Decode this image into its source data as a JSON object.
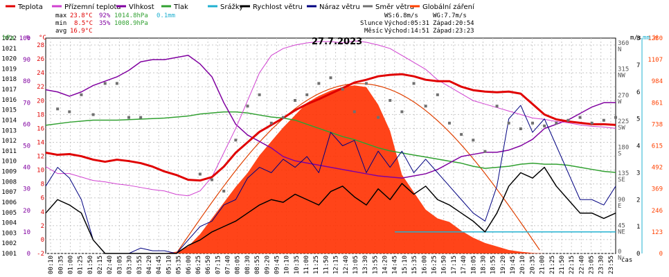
{
  "legend": [
    {
      "label": "Teplota",
      "color": "#e00000"
    },
    {
      "label": "Přízemní teplota",
      "color": "#d040d0"
    },
    {
      "label": "Vlhkost",
      "color": "#8000a0"
    },
    {
      "label": "Tlak",
      "color": "#30a030"
    },
    {
      "label": "Srážky",
      "color": "#20b0d0"
    },
    {
      "label": "Rychlost větru",
      "color": "#000000"
    },
    {
      "label": "Náraz větru",
      "color": "#000080"
    },
    {
      "label": "Směr větru",
      "color": "#707070"
    },
    {
      "label": "Globální záření",
      "color": "#ff4000"
    }
  ],
  "stats": {
    "max_label": "max",
    "max_temp": "23.8°C",
    "max_hum": "92%",
    "max_press": "1014.8hPa",
    "max_rain": "0.1mm",
    "min_label": "min",
    "min_temp": "8.5°C",
    "min_hum": "35%",
    "min_press": "1008.9hPa",
    "avg_label": "avg",
    "avg_temp": "16.9°C"
  },
  "sun": {
    "ws": "WS:6.8m/s",
    "wg": "WG:7.7m/s",
    "slunce_label": "Slunce",
    "slunce_rise": "Východ:05:31",
    "slunce_set": "Západ:20:54",
    "mesic_label": "Měsíc",
    "mesic_rise": "Východ:14:51",
    "mesic_set": "Západ:23:23"
  },
  "chart_data": {
    "type": "line",
    "title": "27.7.2023",
    "xlabel": "čas",
    "x_ticks": [
      "00:10",
      "00:35",
      "01:00",
      "01:25",
      "01:50",
      "02:15",
      "02:40",
      "03:05",
      "03:30",
      "03:55",
      "04:20",
      "04:45",
      "05:10",
      "05:35",
      "06:00",
      "06:25",
      "06:50",
      "07:15",
      "07:40",
      "08:05",
      "08:30",
      "08:55",
      "09:20",
      "09:45",
      "10:10",
      "10:35",
      "11:00",
      "11:25",
      "11:50",
      "12:15",
      "12:40",
      "13:05",
      "13:30",
      "13:55",
      "14:20",
      "14:45",
      "15:10",
      "15:35",
      "16:00",
      "16:25",
      "16:50",
      "17:15",
      "17:40",
      "18:05",
      "18:30",
      "18:55",
      "19:20",
      "19:45",
      "20:10",
      "20:35",
      "21:00",
      "21:25",
      "21:50",
      "22:15",
      "22:40",
      "23:05",
      "23:30",
      "23:55"
    ],
    "x_range_hours": [
      0,
      24
    ],
    "axes": {
      "pressure": {
        "label": "hPa",
        "range": [
          1001,
          1022
        ],
        "color": "#30a030"
      },
      "humidity": {
        "label": "%",
        "range": [
          0,
          100
        ],
        "color": "#8000a0"
      },
      "temperature": {
        "label": "°C",
        "range": [
          -2,
          29
        ],
        "color": "#e00000"
      },
      "wind_speed": {
        "label": "m/s",
        "range": [
          0,
          8
        ],
        "color": "#000000"
      },
      "rain": {
        "label": "mm",
        "range": [
          0,
          1
        ],
        "color": "#20b0d0"
      },
      "radiation": {
        "label": "W",
        "range": [
          0,
          1230
        ],
        "color": "#ff4000"
      },
      "direction": {
        "ticks": [
          "360 N",
          "315 NW",
          "270 W",
          "225 SW",
          "180 S",
          "135 SE",
          "90 E",
          "45 NE",
          "0 N"
        ]
      }
    },
    "series": [
      {
        "name": "Teplota",
        "unit": "°C",
        "x": [
          0,
          0.5,
          1,
          1.5,
          2,
          2.5,
          3,
          3.5,
          4,
          4.5,
          5,
          5.5,
          6,
          6.5,
          7,
          7.5,
          8,
          8.5,
          9,
          9.5,
          10,
          10.5,
          11,
          11.5,
          12,
          12.5,
          13,
          13.5,
          14,
          14.5,
          15,
          15.5,
          16,
          16.5,
          17,
          17.5,
          18,
          18.5,
          19,
          19.5,
          20,
          20.5,
          21,
          21.5,
          22,
          22.5,
          23,
          23.5,
          24
        ],
        "values": [
          12.5,
          12.2,
          12.3,
          12.0,
          11.5,
          11.2,
          11.5,
          11.3,
          11.0,
          10.5,
          9.8,
          9.3,
          8.6,
          8.5,
          9.0,
          10.5,
          12.5,
          14.0,
          15.5,
          16.5,
          17.5,
          18.6,
          19.5,
          20.2,
          21.0,
          21.8,
          22.6,
          23.0,
          23.5,
          23.7,
          23.8,
          23.5,
          23.0,
          22.8,
          22.8,
          22.0,
          21.5,
          21.3,
          21.2,
          21.3,
          21.0,
          19.5,
          18.0,
          17.3,
          17.0,
          16.8,
          16.6,
          16.6,
          16.5
        ]
      },
      {
        "name": "Přízemní teplota",
        "unit": "°C",
        "x": [
          0,
          0.5,
          1,
          1.5,
          2,
          2.5,
          3,
          3.5,
          4,
          4.5,
          5,
          5.5,
          6,
          6.5,
          7,
          7.5,
          8,
          8.5,
          9,
          9.5,
          10,
          10.5,
          11,
          11.5,
          12,
          12.5,
          13,
          13.5,
          14,
          14.5,
          15,
          15.5,
          16,
          16.5,
          17,
          17.5,
          18,
          18.5,
          19,
          19.5,
          20,
          20.5,
          21,
          21.5,
          22,
          22.5,
          23,
          23.5,
          24
        ],
        "values": [
          10.5,
          9.5,
          9.5,
          9.0,
          8.5,
          8.3,
          8.0,
          7.8,
          7.5,
          7.2,
          7.0,
          6.5,
          6.3,
          7.0,
          9.0,
          12.5,
          16.0,
          20.0,
          24.0,
          26.5,
          27.5,
          28.0,
          28.3,
          28.5,
          28.5,
          28.3,
          28.6,
          28.4,
          28.0,
          27.5,
          26.5,
          25.5,
          24.5,
          23.0,
          22.0,
          21.0,
          20.0,
          19.5,
          19.0,
          18.5,
          18.0,
          17.5,
          17.3,
          17.0,
          16.8,
          16.5,
          16.3,
          16.2,
          16.0
        ]
      },
      {
        "name": "Vlhkost",
        "unit": "%",
        "x": [
          0,
          0.5,
          1,
          1.5,
          2,
          2.5,
          3,
          3.5,
          4,
          4.5,
          5,
          5.5,
          6,
          6.5,
          7,
          7.5,
          8,
          8.5,
          9,
          9.5,
          10,
          10.5,
          11,
          11.5,
          12,
          12.5,
          13,
          13.5,
          14,
          14.5,
          15,
          15.5,
          16,
          16.5,
          17,
          17.5,
          18,
          18.5,
          19,
          19.5,
          20,
          20.5,
          21,
          21.5,
          22,
          22.5,
          23,
          23.5,
          24
        ],
        "values": [
          76,
          75,
          73,
          75,
          78,
          80,
          82,
          85,
          89,
          90,
          90,
          91,
          92,
          88,
          82,
          70,
          60,
          55,
          52,
          49,
          45,
          43,
          42,
          41,
          40,
          39,
          38,
          37,
          36,
          35.5,
          35,
          36,
          37,
          39,
          42,
          45,
          46,
          47,
          47,
          48,
          50,
          53,
          58,
          60,
          62,
          65,
          68,
          70,
          70
        ]
      },
      {
        "name": "Tlak",
        "unit": "hPa",
        "x": [
          0,
          1,
          2,
          3,
          4,
          5,
          6,
          6.5,
          7,
          7.5,
          8,
          8.5,
          9,
          9.5,
          10,
          10.5,
          11,
          11.5,
          12,
          12.5,
          13,
          13.5,
          14,
          14.5,
          15,
          15.5,
          16,
          16.5,
          17,
          17.5,
          18,
          18.5,
          19,
          19.5,
          20,
          20.5,
          21,
          21.5,
          22,
          22.5,
          23,
          23.5,
          24
        ],
        "values": [
          1013.5,
          1013.8,
          1014.0,
          1014.0,
          1014.1,
          1014.2,
          1014.4,
          1014.6,
          1014.7,
          1014.8,
          1014.8,
          1014.7,
          1014.5,
          1014.3,
          1014.2,
          1014.0,
          1013.6,
          1013.2,
          1012.8,
          1012.4,
          1012.1,
          1011.7,
          1011.3,
          1011.0,
          1010.8,
          1010.6,
          1010.4,
          1010.2,
          1010.0,
          1009.8,
          1009.5,
          1009.3,
          1009.4,
          1009.5,
          1009.7,
          1009.8,
          1009.7,
          1009.7,
          1009.6,
          1009.4,
          1009.2,
          1009.0,
          1008.9
        ]
      },
      {
        "name": "Srážky",
        "unit": "mm",
        "x": [
          14.7,
          15.5,
          16.5,
          17.5,
          18.5,
          19.5,
          20.5,
          21.5,
          22.5,
          23.5,
          24
        ],
        "values": [
          0.1,
          0.1,
          0.1,
          0.1,
          0.1,
          0.1,
          0.1,
          0.1,
          0.1,
          0.1,
          0.1
        ]
      },
      {
        "name": "Rychlost větru",
        "unit": "m/s",
        "x": [
          0,
          0.5,
          1,
          1.5,
          2,
          2.5,
          3,
          3.5,
          4,
          4.5,
          5,
          5.5,
          6,
          6.5,
          7,
          7.5,
          8,
          8.5,
          9,
          9.5,
          10,
          10.5,
          11,
          11.5,
          12,
          12.5,
          13,
          13.5,
          14,
          14.5,
          15,
          15.5,
          16,
          16.5,
          17,
          17.5,
          18,
          18.5,
          19,
          19.5,
          20,
          20.5,
          21,
          21.5,
          22,
          22.5,
          23,
          23.5,
          24
        ],
        "values": [
          1.5,
          2.0,
          1.8,
          1.5,
          0.5,
          0,
          0,
          0,
          0,
          0,
          0,
          0,
          0.3,
          0.5,
          0.8,
          1.0,
          1.2,
          1.5,
          1.8,
          2.0,
          1.9,
          2.2,
          2.0,
          1.8,
          2.3,
          2.5,
          2.1,
          1.8,
          2.4,
          2.0,
          2.6,
          2.2,
          2.5,
          2.0,
          1.8,
          1.5,
          1.2,
          0.8,
          1.5,
          2.5,
          3.0,
          2.8,
          3.2,
          2.5,
          2.0,
          1.5,
          1.5,
          1.3,
          1.5
        ]
      },
      {
        "name": "Náraz větru",
        "unit": "m/s",
        "x": [
          0,
          0.5,
          1,
          1.5,
          2,
          2.5,
          3,
          3.5,
          4,
          4.5,
          5,
          5.5,
          6,
          6.5,
          7,
          7.5,
          8,
          8.5,
          9,
          9.5,
          10,
          10.5,
          11,
          11.5,
          12,
          12.5,
          13,
          13.5,
          14,
          14.5,
          15,
          15.5,
          16,
          16.5,
          17,
          17.5,
          18,
          18.5,
          19,
          19.5,
          20,
          20.5,
          21,
          21.5,
          22,
          22.5,
          23,
          23.5,
          24
        ],
        "values": [
          2.5,
          3.2,
          2.8,
          2.0,
          0.5,
          0,
          0,
          0,
          0.2,
          0.1,
          0.1,
          0,
          0.5,
          1.0,
          1.2,
          1.8,
          2.0,
          2.8,
          3.2,
          3.0,
          3.5,
          3.2,
          3.6,
          3.0,
          4.5,
          4.0,
          4.2,
          3.0,
          3.8,
          3.2,
          3.8,
          3.0,
          3.5,
          3.0,
          2.5,
          2.0,
          1.5,
          1.2,
          2.5,
          5.0,
          5.5,
          4.5,
          5.0,
          4.0,
          3.0,
          2.0,
          2.0,
          1.8,
          2.5
        ]
      },
      {
        "name": "Směr větru",
        "unit": "°",
        "x": [
          0.5,
          1,
          1.5,
          2,
          2.5,
          3,
          3.5,
          4,
          6.5,
          7,
          7.5,
          8,
          8.5,
          9,
          9.5,
          10,
          10.5,
          11,
          11.5,
          12,
          12.5,
          13,
          13.5,
          14,
          14.5,
          15,
          15.5,
          16,
          16.5,
          17,
          17.5,
          18,
          18.5,
          19,
          19.5,
          20,
          20.5,
          21,
          21.5,
          22,
          22.5,
          23,
          23.5,
          24
        ],
        "values": [
          255,
          250,
          280,
          245,
          300,
          300,
          240,
          240,
          140,
          130,
          110,
          200,
          260,
          280,
          230,
          240,
          270,
          280,
          300,
          310,
          290,
          250,
          300,
          240,
          270,
          250,
          300,
          260,
          280,
          230,
          210,
          200,
          180,
          260,
          230,
          220,
          230,
          225,
          230,
          235,
          240,
          230,
          235,
          240
        ]
      },
      {
        "name": "Globální záření",
        "unit": "W/m²",
        "x": [
          0,
          5,
          5.5,
          6,
          6.5,
          7,
          7.5,
          8,
          8.5,
          9,
          9.5,
          10,
          10.5,
          11,
          11.5,
          12,
          12.5,
          13,
          13.5,
          14,
          14.5,
          15,
          15.5,
          16,
          16.5,
          17,
          17.5,
          18,
          18.5,
          19,
          19.5,
          20,
          20.5,
          21,
          24
        ],
        "values": [
          0,
          0,
          10,
          40,
          110,
          200,
          290,
          380,
          460,
          560,
          640,
          720,
          790,
          860,
          900,
          930,
          950,
          960,
          950,
          850,
          700,
          450,
          350,
          250,
          200,
          180,
          130,
          90,
          60,
          40,
          20,
          10,
          3,
          0,
          0
        ]
      }
    ]
  }
}
